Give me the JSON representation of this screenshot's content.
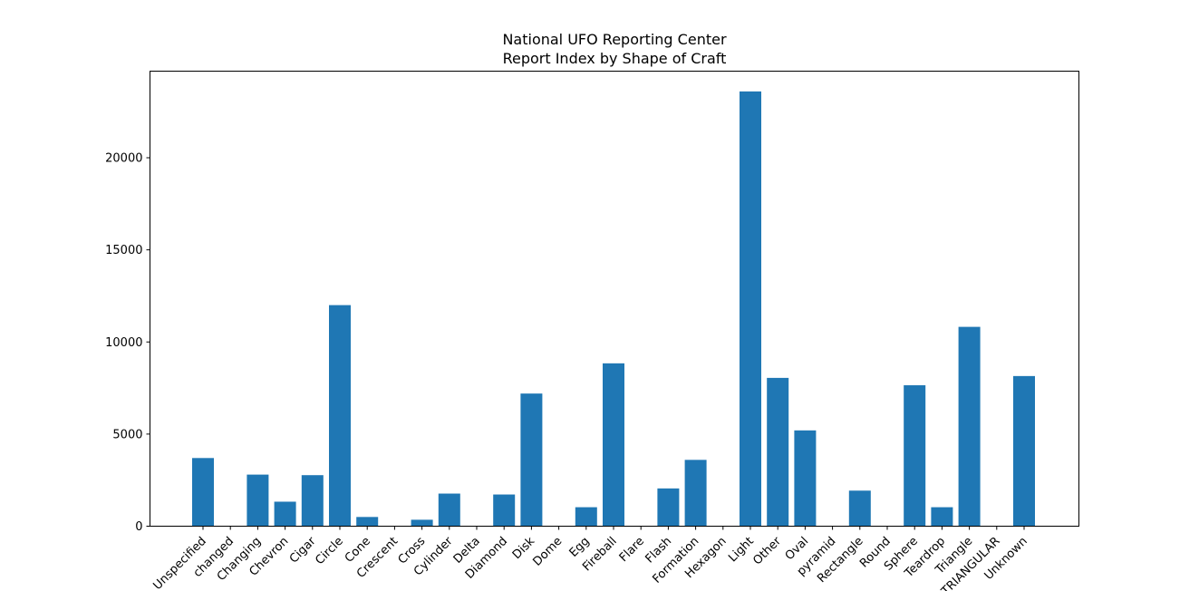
{
  "colors": {
    "bar": "#1f77b4",
    "axis": "#000000",
    "background": "#ffffff"
  },
  "chart_data": {
    "type": "bar",
    "title": "National UFO Reporting Center",
    "subtitle": "Report Index by Shape of Craft",
    "xlabel": "",
    "ylabel": "",
    "ylim": [
      0,
      24700
    ],
    "yticks": [
      0,
      5000,
      10000,
      15000,
      20000
    ],
    "ytick_labels": [
      "0",
      "5000",
      "10000",
      "15000",
      "20000"
    ],
    "grid": false,
    "legend": "none",
    "categories": [
      "Unspecified",
      "changed",
      "Changing",
      "Chevron",
      "Cigar",
      "Circle",
      "Cone",
      "Crescent",
      "Cross",
      "Cylinder",
      "Delta",
      "Diamond",
      "Disk",
      "Dome",
      "Egg",
      "Fireball",
      "Flare",
      "Flash",
      "Formation",
      "Hexagon",
      "Light",
      "Other",
      "Oval",
      "pyramid",
      "Rectangle",
      "Round",
      "Sphere",
      "Teardrop",
      "Triangle",
      "TRIANGULAR",
      "Unknown"
    ],
    "values": [
      3700,
      0,
      2800,
      1330,
      2770,
      12000,
      500,
      0,
      350,
      1770,
      0,
      1720,
      7200,
      0,
      1030,
      8840,
      0,
      2050,
      3600,
      0,
      23600,
      8050,
      5200,
      0,
      1930,
      0,
      7650,
      1030,
      10820,
      0,
      8150
    ]
  }
}
